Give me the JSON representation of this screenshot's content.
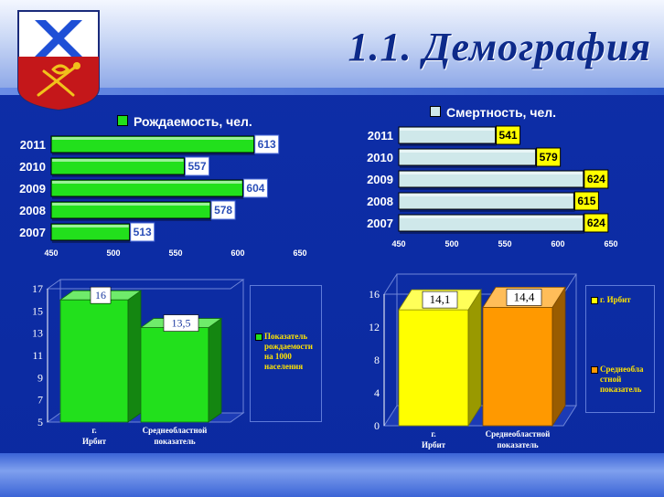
{
  "header": {
    "title": "1.1. Демография",
    "coat_of_arms": "city-coat-of-arms-icon"
  },
  "colors": {
    "background": "#0d2ba3",
    "green": "#22e01c",
    "lightblue": "#cfe8ea",
    "yellow": "#ffff00",
    "orange": "#ff9900",
    "label_yellow": "#ffe400"
  },
  "chart_data": [
    {
      "id": "births",
      "type": "bar",
      "orientation": "horizontal",
      "title": "Рождаемость, чел.",
      "categories": [
        "2011",
        "2010",
        "2009",
        "2008",
        "2007"
      ],
      "series": [
        {
          "name": "Рождаемость, чел.",
          "values": [
            613,
            557,
            604,
            578,
            513
          ]
        }
      ],
      "data_labels": [
        "613",
        "557",
        "604",
        "578",
        "513"
      ],
      "xlim": [
        450,
        650
      ],
      "x_ticks": [
        "450",
        "500",
        "550",
        "600",
        "650"
      ],
      "legend": "top",
      "grid": false
    },
    {
      "id": "deaths",
      "type": "bar",
      "orientation": "horizontal",
      "title": "Смертность, чел.",
      "categories": [
        "2011",
        "2010",
        "2009",
        "2008",
        "2007"
      ],
      "series": [
        {
          "name": "Смертность, чел.",
          "values": [
            541,
            579,
            624,
            615,
            624
          ]
        }
      ],
      "data_labels": [
        "541",
        "579",
        "624",
        "615",
        "624"
      ],
      "xlim": [
        450,
        650
      ],
      "x_ticks": [
        "450",
        "500",
        "550",
        "600",
        "650"
      ],
      "legend": "top",
      "grid": false
    },
    {
      "id": "birth-rate",
      "type": "bar",
      "style": "3d-column",
      "categories": [
        "г. Ирбит",
        "Среднеобластной показатель"
      ],
      "series": [
        {
          "name": "Показатель рождаемости на 1000 населения",
          "values": [
            16,
            13.5
          ]
        }
      ],
      "data_labels": [
        "16",
        "13,5"
      ],
      "ylim": [
        5,
        17
      ],
      "y_ticks": [
        "5",
        "7",
        "9",
        "11",
        "13",
        "15",
        "17"
      ],
      "legend": "right",
      "grid": false
    },
    {
      "id": "death-rate",
      "type": "bar",
      "style": "3d-column",
      "categories": [
        "г. Ирбит",
        "Среднеобластной показатель"
      ],
      "series": [
        {
          "name": "г. Ирбит",
          "values": [
            14.1,
            null
          ]
        },
        {
          "name": "Среднеобластной показатель",
          "values": [
            null,
            14.4
          ]
        }
      ],
      "data_labels": [
        "14,1",
        "14,4"
      ],
      "legend_labels": [
        "г. Ирбит",
        "Среднеобла\nстной\nпоказатель"
      ],
      "ylim": [
        0,
        16
      ],
      "y_ticks": [
        "0",
        "4",
        "8",
        "12",
        "16"
      ],
      "legend": "right",
      "grid": false
    }
  ]
}
